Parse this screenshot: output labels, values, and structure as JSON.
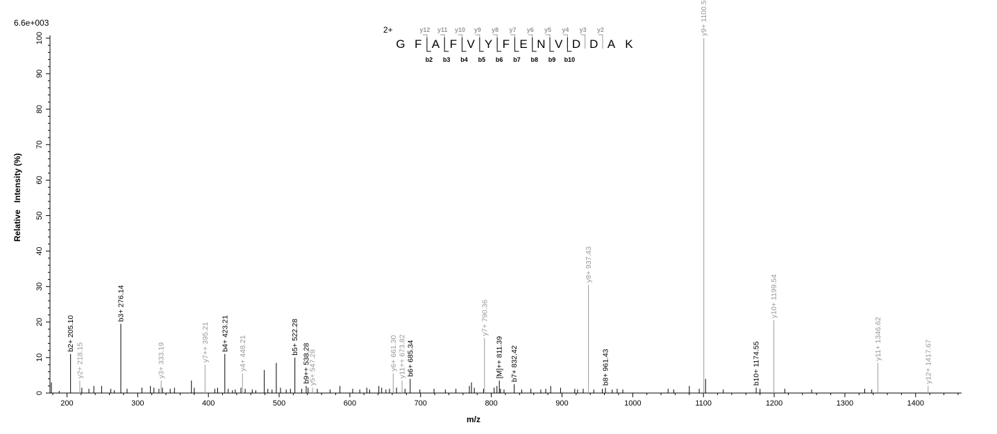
{
  "chart_data": {
    "type": "bar",
    "intensity_scale": "6.6e+003",
    "xlabel": "m/z",
    "ylabel": "Relative   Intensity (%)",
    "xlim": [
      176,
      1465
    ],
    "ylim": [
      0,
      100
    ],
    "x_ticks": [
      200,
      300,
      400,
      500,
      600,
      700,
      800,
      900,
      1000,
      1100,
      1200,
      1300,
      1400
    ],
    "y_ticks": [
      0,
      10,
      20,
      30,
      40,
      50,
      60,
      70,
      80,
      90,
      100
    ],
    "peptide": {
      "charge": "2+",
      "residues": [
        "G",
        "F",
        "A",
        "F",
        "V",
        "Y",
        "F",
        "E",
        "N",
        "V",
        "D",
        "D",
        "A",
        "K"
      ],
      "y_ions": [
        "y12",
        "y11",
        "y10",
        "y9",
        "y8",
        "y7",
        "y6",
        "y5",
        "y4",
        "y3",
        "y2"
      ],
      "b_ions": [
        "b2",
        "b3",
        "b4",
        "b5",
        "b6",
        "b7",
        "b8",
        "b9",
        "b10"
      ]
    },
    "annotated_peaks": [
      {
        "mz": 205.1,
        "intensity": 11,
        "label": "b2+ 205.10",
        "ion": "b"
      },
      {
        "mz": 218.15,
        "intensity": 3.5,
        "label": "y2+ 218.15",
        "ion": "y"
      },
      {
        "mz": 276.14,
        "intensity": 19.5,
        "label": "b3+ 276.14",
        "ion": "b"
      },
      {
        "mz": 333.19,
        "intensity": 3.5,
        "label": "y3+ 333.19",
        "ion": "y"
      },
      {
        "mz": 395.21,
        "intensity": 8,
        "label": "y7++ 395.21",
        "ion": "y"
      },
      {
        "mz": 423.21,
        "intensity": 11,
        "label": "b4+ 423.21",
        "ion": "b"
      },
      {
        "mz": 448.21,
        "intensity": 5.5,
        "label": "y4+ 448.21",
        "ion": "y"
      },
      {
        "mz": 522.28,
        "intensity": 10,
        "label": "b5+ 522.28",
        "ion": "b"
      },
      {
        "mz": 538.28,
        "intensity": 2,
        "label": "b9++ 538.28",
        "ion": "b"
      },
      {
        "mz": 547.28,
        "intensity": 1.5,
        "label": "y5+ 547.28",
        "ion": "y"
      },
      {
        "mz": 661.3,
        "intensity": 5.5,
        "label": "y6+ 661.30",
        "ion": "y"
      },
      {
        "mz": 673.82,
        "intensity": 3.5,
        "label": "y11++ 673.82",
        "ion": "y"
      },
      {
        "mz": 685.34,
        "intensity": 4,
        "label": "b6+ 685.34",
        "ion": "b"
      },
      {
        "mz": 790.36,
        "intensity": 15.5,
        "label": "y7+ 790.36",
        "ion": "y"
      },
      {
        "mz": 811.39,
        "intensity": 3.5,
        "label": "[M]++ 811.39",
        "ion": "m"
      },
      {
        "mz": 832.42,
        "intensity": 2.5,
        "label": "b7+ 832.42",
        "ion": "b"
      },
      {
        "mz": 937.43,
        "intensity": 30.5,
        "label": "y8+ 937.43",
        "ion": "y"
      },
      {
        "mz": 961.43,
        "intensity": 1.5,
        "label": "b8+ 961.43",
        "ion": "b"
      },
      {
        "mz": 1100.5,
        "intensity": 100,
        "label": "y9+ 1100.50",
        "ion": "y"
      },
      {
        "mz": 1174.55,
        "intensity": 1.5,
        "label": "b10+ 1174.55",
        "ion": "b"
      },
      {
        "mz": 1199.54,
        "intensity": 20.5,
        "label": "y10+ 1199.54",
        "ion": "y"
      },
      {
        "mz": 1346.62,
        "intensity": 8.5,
        "label": "y11+ 1346.62",
        "ion": "y"
      },
      {
        "mz": 1417.67,
        "intensity": 2,
        "label": "y12+ 1417.67",
        "ion": "y"
      }
    ],
    "other_peaks": [
      [
        178,
        3
      ],
      [
        189,
        0.6
      ],
      [
        221,
        1.5
      ],
      [
        231,
        1.2
      ],
      [
        238,
        2
      ],
      [
        249,
        2
      ],
      [
        262,
        1.2
      ],
      [
        267,
        0.8
      ],
      [
        285,
        1.2
      ],
      [
        306,
        1.5
      ],
      [
        318,
        2
      ],
      [
        323,
        1.5
      ],
      [
        330,
        1.2
      ],
      [
        335,
        1.5
      ],
      [
        346,
        1.2
      ],
      [
        352,
        1.5
      ],
      [
        376,
        3.5
      ],
      [
        380,
        1.5
      ],
      [
        409,
        1.2
      ],
      [
        413,
        1.5
      ],
      [
        428,
        1.2
      ],
      [
        434,
        0.8
      ],
      [
        438,
        1
      ],
      [
        446,
        1.5
      ],
      [
        452,
        1.2
      ],
      [
        462,
        1
      ],
      [
        467,
        0.8
      ],
      [
        479,
        6.5
      ],
      [
        484,
        1.2
      ],
      [
        490,
        1
      ],
      [
        496,
        8.5
      ],
      [
        502,
        1.5
      ],
      [
        510,
        1
      ],
      [
        516,
        1.2
      ],
      [
        532,
        1.2
      ],
      [
        541,
        1.5
      ],
      [
        554,
        1.2
      ],
      [
        572,
        1
      ],
      [
        586,
        2
      ],
      [
        604,
        1.2
      ],
      [
        614,
        1
      ],
      [
        624,
        1.5
      ],
      [
        628,
        1
      ],
      [
        641,
        2
      ],
      [
        645,
        1.5
      ],
      [
        651,
        1
      ],
      [
        656,
        1.2
      ],
      [
        666,
        1.5
      ],
      [
        678,
        1.2
      ],
      [
        699,
        1
      ],
      [
        719,
        1.2
      ],
      [
        735,
        1
      ],
      [
        750,
        1.2
      ],
      [
        769,
        2
      ],
      [
        772,
        3
      ],
      [
        776,
        1.5
      ],
      [
        789,
        1.2
      ],
      [
        804,
        1.5
      ],
      [
        808,
        2
      ],
      [
        813,
        1.2
      ],
      [
        818,
        1
      ],
      [
        843,
        1
      ],
      [
        856,
        1.2
      ],
      [
        870,
        1
      ],
      [
        877,
        1.2
      ],
      [
        884,
        2
      ],
      [
        898,
        1.5
      ],
      [
        918,
        1.2
      ],
      [
        922,
        1
      ],
      [
        930,
        1.2
      ],
      [
        945,
        1
      ],
      [
        957,
        1.2
      ],
      [
        971,
        1
      ],
      [
        978,
        1.2
      ],
      [
        986,
        1
      ],
      [
        1050,
        1.2
      ],
      [
        1058,
        1
      ],
      [
        1080,
        2
      ],
      [
        1094,
        1.2
      ],
      [
        1103,
        4
      ],
      [
        1128,
        1
      ],
      [
        1180,
        1.2
      ],
      [
        1215,
        1.2
      ],
      [
        1253,
        1
      ],
      [
        1328,
        1.2
      ],
      [
        1338,
        1
      ]
    ]
  }
}
